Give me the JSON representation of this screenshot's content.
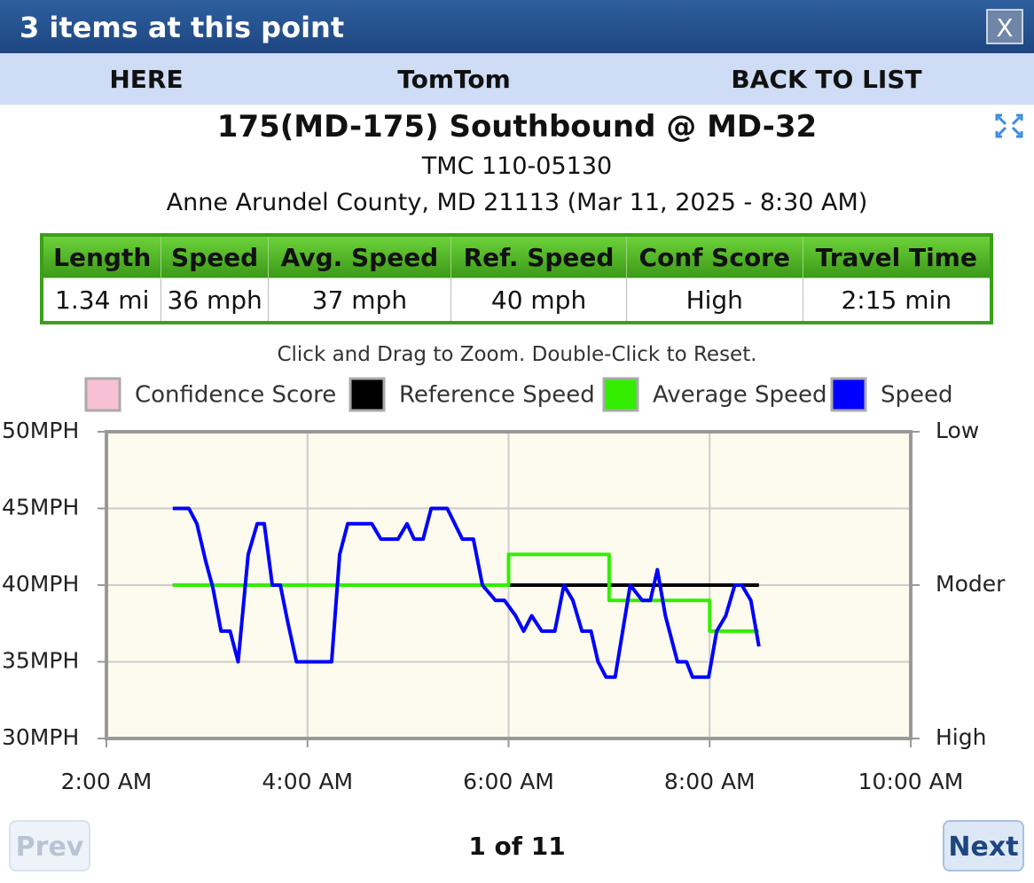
{
  "header": {
    "title": "3 items at this point",
    "close": "X"
  },
  "tabs": [
    "HERE",
    "TomTom",
    "BACK TO LIST"
  ],
  "location": {
    "title": "175(MD-175) Southbound @ MD-32",
    "tmc": "TMC 110-05130",
    "place": "Anne Arundel County, MD 21113 (Mar 11, 2025 - 8:30 AM)"
  },
  "table": {
    "header": [
      "Length",
      "Speed",
      "Avg. Speed",
      "Ref. Speed",
      "Conf Score",
      "Travel Time"
    ],
    "rows": [
      [
        "1.34 mi",
        "36 mph",
        "37 mph",
        "40 mph",
        "High",
        "2:15 min"
      ]
    ]
  },
  "hint": "Click and Drag to Zoom. Double-Click to Reset.",
  "chart_data": {
    "type": "line",
    "xlim": [
      2,
      10
    ],
    "xticks": [
      {
        "value": 2,
        "label": "2:00 AM"
      },
      {
        "value": 4,
        "label": "4:00 AM"
      },
      {
        "value": 6,
        "label": "6:00 AM"
      },
      {
        "value": 8,
        "label": "8:00 AM"
      },
      {
        "value": 10,
        "label": "10:00 AM"
      }
    ],
    "ylim": [
      30,
      50
    ],
    "yticks": [
      {
        "value": 30,
        "label": "30MPH"
      },
      {
        "value": 35,
        "label": "35MPH"
      },
      {
        "value": 40,
        "label": "40MPH"
      },
      {
        "value": 45,
        "label": "45MPH"
      },
      {
        "value": 50,
        "label": "50MPH"
      }
    ],
    "y2lim": [
      30,
      50
    ],
    "y2ticks": [
      {
        "value": 30,
        "label": "High"
      },
      {
        "value": 40,
        "label": "Moder"
      },
      {
        "value": 50,
        "label": "Low"
      }
    ],
    "grid": true,
    "series": [
      {
        "name": "Confidence Score",
        "color": "#f8c0d4",
        "axis": "y2",
        "x": [],
        "values": []
      },
      {
        "name": "Reference Speed",
        "color": "#000000",
        "x": [
          2.66,
          8.49
        ],
        "values": [
          40,
          40
        ]
      },
      {
        "name": "Average Speed",
        "color": "#33ee00",
        "x": [
          2.66,
          6,
          6,
          7,
          7,
          8,
          8,
          8.49
        ],
        "values": [
          40,
          40,
          42,
          42,
          39,
          39,
          37,
          37
        ]
      },
      {
        "name": "Speed",
        "color": "#0000ff",
        "x": [
          2.66,
          2.82,
          2.9,
          2.99,
          3.06,
          3.14,
          3.23,
          3.31,
          3.41,
          3.5,
          3.57,
          3.65,
          3.73,
          3.8,
          3.89,
          3.98,
          4.24,
          4.32,
          4.4,
          4.64,
          4.73,
          4.9,
          4.99,
          5.06,
          5.15,
          5.23,
          5.39,
          5.54,
          5.65,
          5.74,
          5.87,
          5.96,
          6.07,
          6.15,
          6.23,
          6.33,
          6.46,
          6.55,
          6.64,
          6.73,
          6.82,
          6.89,
          6.97,
          7.06,
          7.21,
          7.33,
          7.41,
          7.48,
          7.56,
          7.68,
          7.77,
          7.83,
          7.99,
          8.07,
          8.16,
          8.25,
          8.32,
          8.41,
          8.49
        ],
        "values": [
          45,
          45,
          44,
          41.5,
          39.8,
          37,
          37,
          35,
          42,
          44,
          44,
          40,
          40,
          37.7,
          35,
          35,
          35,
          42,
          44,
          44,
          43,
          43,
          44,
          43,
          43,
          45,
          45,
          43,
          43,
          40,
          39,
          39,
          38,
          37,
          38,
          37,
          37,
          40,
          39,
          37,
          37,
          35,
          34,
          34,
          40,
          39,
          39,
          41,
          38,
          35,
          35,
          34,
          34,
          37,
          38,
          40,
          40,
          39,
          36
        ]
      }
    ]
  },
  "pager": {
    "prev": "Prev",
    "status": "1 of 11",
    "next": "Next"
  }
}
